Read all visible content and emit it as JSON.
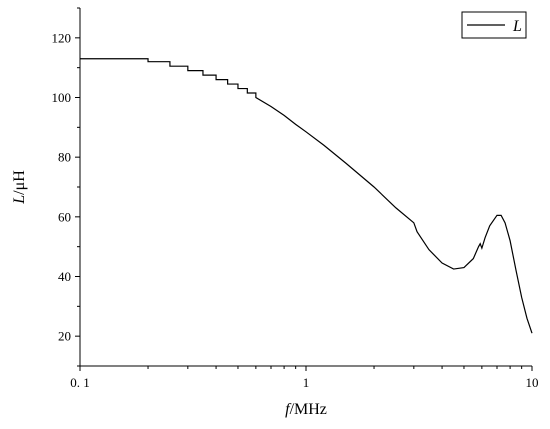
{
  "chart_data": {
    "type": "line",
    "xscale": "log",
    "xlim": [
      0.1,
      10
    ],
    "ylim": [
      10,
      130
    ],
    "x_ticks": [
      0.1,
      1,
      10
    ],
    "x_tick_labels": [
      "0. 1",
      "1",
      "10"
    ],
    "y_ticks": [
      20,
      40,
      60,
      80,
      100,
      120
    ],
    "y_tick_labels": [
      "20",
      "40",
      "60",
      "80",
      "100",
      "120"
    ],
    "xlabel_italic": "f",
    "xlabel_rest": "/MHz",
    "ylabel_italic": "L",
    "ylabel_rest": "/μH",
    "legend_position": "top-right",
    "grid": false,
    "series": [
      {
        "name": "L",
        "color": "#000000",
        "x": [
          0.1,
          0.16,
          0.2,
          0.25,
          0.3,
          0.35,
          0.4,
          0.45,
          0.5,
          0.55,
          0.6,
          0.7,
          0.8,
          0.9,
          1.0,
          1.2,
          1.5,
          2.0,
          2.5,
          3.0,
          3.1,
          3.5,
          4.0,
          4.5,
          5.0,
          5.5,
          5.8,
          5.9,
          6.0,
          6.2,
          6.5,
          7.0,
          7.3,
          7.6,
          8.0,
          8.5,
          9.0,
          9.5,
          10.0
        ],
        "y": [
          113,
          113,
          112,
          110.5,
          109,
          107.5,
          106,
          104.5,
          103,
          101.5,
          100,
          97,
          94,
          91,
          88.5,
          84,
          78,
          70,
          63,
          58,
          55,
          49,
          44.5,
          42.5,
          43,
          46,
          50,
          51,
          49.5,
          53,
          57,
          60.5,
          60.5,
          58,
          52,
          42,
          33,
          26,
          21
        ]
      }
    ]
  }
}
